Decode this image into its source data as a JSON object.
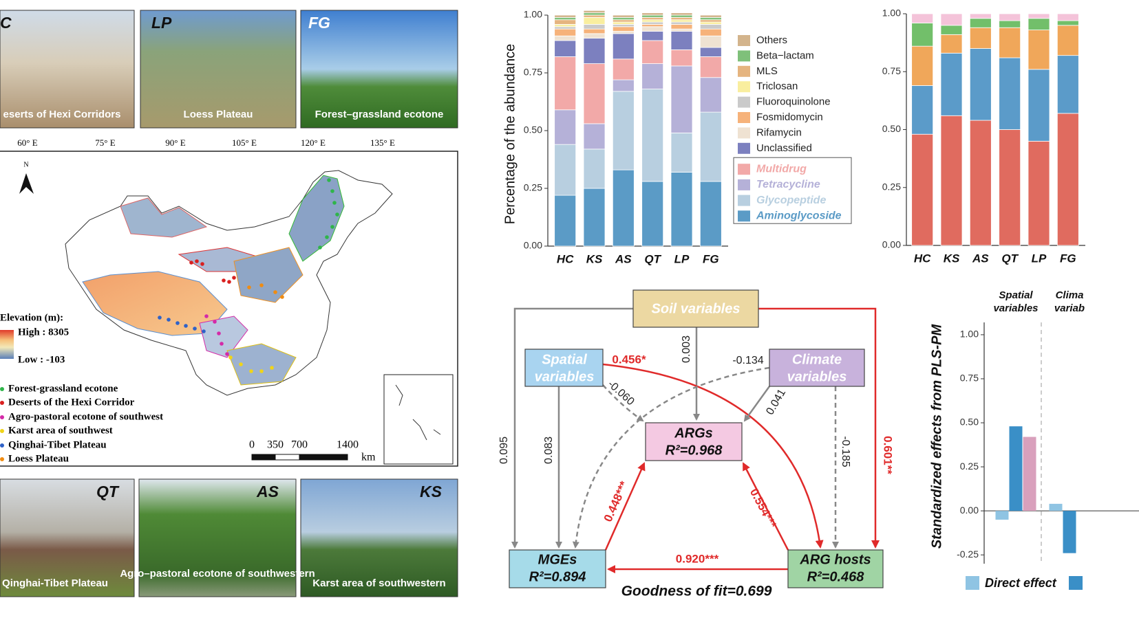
{
  "photos": {
    "top": [
      {
        "code": "C",
        "caption": "eserts of Hexi Corridors"
      },
      {
        "code": "LP",
        "caption": "Loess Plateau"
      },
      {
        "code": "FG",
        "caption": "Forest–grassland ecotone"
      }
    ],
    "bottom": [
      {
        "code": "QT",
        "caption": "Qinghai-Tibet Plateau"
      },
      {
        "code": "AS",
        "caption": "Agro–pastoral ecotone of southwestern"
      },
      {
        "code": "KS",
        "caption": "Karst area of southwestern"
      }
    ]
  },
  "map": {
    "longitudes": [
      "60° E",
      "75° E",
      "90° E",
      "105° E",
      "120° E",
      "135° E"
    ],
    "north": "N",
    "elevation_title": "Elevation (m):",
    "elevation_high": "High : 8305",
    "elevation_low": "Low : -103",
    "legend": [
      {
        "label": "Forest-grassland ecotone",
        "color": "#2fb54a"
      },
      {
        "label": "Deserts of the Hexi Corridor",
        "color": "#d9201f"
      },
      {
        "label": "Agro-pastoral ecotone of southwest",
        "color": "#d42aa8"
      },
      {
        "label": "Karst area of southwest",
        "color": "#f0d419"
      },
      {
        "label": "Qinghai-Tibet Plateau",
        "color": "#2f62c8"
      },
      {
        "label": "Loess Plateau",
        "color": "#f08c12"
      }
    ],
    "scale_labels": [
      "0",
      "350",
      "700",
      "1400"
    ],
    "scale_unit": "km"
  },
  "chart_data": [
    {
      "type": "bar",
      "stacked": true,
      "y_label": "Percentage of the abundance",
      "categories": [
        "HC",
        "KS",
        "AS",
        "QT",
        "LP",
        "FG"
      ],
      "ylim": [
        0,
        1
      ],
      "yticks": [
        {
          "value": 0,
          "label": "0.00"
        },
        {
          "value": 0.25,
          "label": "0.25"
        },
        {
          "value": 0.5,
          "label": "0.50"
        },
        {
          "value": 0.75,
          "label": "0.75"
        },
        {
          "value": 1,
          "label": "1.00"
        }
      ],
      "series": [
        {
          "name": "Aminoglycoside",
          "color": "#5b9bc6",
          "emphasis": true,
          "values": [
            0.22,
            0.25,
            0.33,
            0.28,
            0.32,
            0.28
          ]
        },
        {
          "name": "Glycopeptide",
          "color": "#b8cfe0",
          "emphasis": true,
          "values": [
            0.22,
            0.17,
            0.34,
            0.4,
            0.17,
            0.3
          ]
        },
        {
          "name": "Tetracycline",
          "color": "#b5b1d8",
          "emphasis": true,
          "values": [
            0.15,
            0.11,
            0.05,
            0.11,
            0.29,
            0.15
          ]
        },
        {
          "name": "Multidrug",
          "color": "#f2a9a8",
          "emphasis": true,
          "values": [
            0.23,
            0.26,
            0.09,
            0.1,
            0.07,
            0.09
          ]
        },
        {
          "name": "Unclassified",
          "color": "#7c80bf",
          "values": [
            0.07,
            0.11,
            0.11,
            0.04,
            0.08,
            0.04
          ]
        },
        {
          "name": "Rifamycin",
          "color": "#efe2d2",
          "values": [
            0.02,
            0.02,
            0.01,
            0.02,
            0.01,
            0.05
          ]
        },
        {
          "name": "Fosmidomycin",
          "color": "#f6b27a",
          "values": [
            0.03,
            0.02,
            0.02,
            0.01,
            0.02,
            0.03
          ]
        },
        {
          "name": "Fluoroquinolone",
          "color": "#cacaca",
          "values": [
            0.01,
            0.02,
            0.01,
            0.01,
            0.01,
            0.02
          ]
        },
        {
          "name": "Triclosan",
          "color": "#f9ee9f",
          "values": [
            0.01,
            0.03,
            0.01,
            0.01,
            0.01,
            0.01
          ]
        },
        {
          "name": "MLS",
          "color": "#e5b47f",
          "values": [
            0.02,
            0.01,
            0.01,
            0.01,
            0.01,
            0.01
          ]
        },
        {
          "name": "Beta−lactam",
          "color": "#7fc07a",
          "values": [
            0.01,
            0.01,
            0.01,
            0.01,
            0.01,
            0.01
          ]
        },
        {
          "name": "Others",
          "color": "#d3b48c",
          "values": [
            0.01,
            0.01,
            0.01,
            0.01,
            0.01,
            0.01
          ]
        }
      ]
    },
    {
      "type": "bar",
      "stacked": true,
      "categories": [
        "HC",
        "KS",
        "AS",
        "QT",
        "LP",
        "FG"
      ],
      "ylim": [
        0,
        1
      ],
      "yticks": [
        {
          "value": 0,
          "label": "0.00"
        },
        {
          "value": 0.25,
          "label": "0.25"
        },
        {
          "value": 0.5,
          "label": "0.50"
        },
        {
          "value": 0.75,
          "label": "0.75"
        },
        {
          "value": 1,
          "label": "1.00"
        }
      ],
      "series": [
        {
          "color": "#e06b5f",
          "values": [
            0.48,
            0.56,
            0.54,
            0.5,
            0.45,
            0.57
          ]
        },
        {
          "color": "#5b9bc9",
          "values": [
            0.21,
            0.27,
            0.31,
            0.31,
            0.31,
            0.25
          ]
        },
        {
          "color": "#f0a75a",
          "values": [
            0.17,
            0.08,
            0.09,
            0.13,
            0.17,
            0.13
          ]
        },
        {
          "color": "#72bf6a",
          "values": [
            0.1,
            0.04,
            0.04,
            0.03,
            0.05,
            0.02
          ]
        },
        {
          "color": "#f4c3d9",
          "values": [
            0.04,
            0.05,
            0.02,
            0.03,
            0.02,
            0.03
          ]
        }
      ]
    },
    {
      "type": "bar",
      "stacked": false,
      "y_label": "Standardized effects from PLS-PM",
      "categories": [
        [
          "Spatial",
          "variables"
        ],
        [
          "Clima",
          "variab"
        ]
      ],
      "ylim": [
        -0.3,
        1.07
      ],
      "yticks": [
        {
          "value": -0.25,
          "label": "-0.25"
        },
        {
          "value": 0,
          "label": "0.00"
        },
        {
          "value": 0.25,
          "label": "0.25"
        },
        {
          "value": 0.5,
          "label": "0.50"
        },
        {
          "value": 0.75,
          "label": "0.75"
        },
        {
          "value": 1,
          "label": "1.00"
        }
      ],
      "series": [
        {
          "name": "Direct effect",
          "color": "#8fc4e3",
          "values": [
            -0.05,
            0.04
          ]
        },
        {
          "color": "#3a8fc7",
          "values": [
            0.48,
            -0.24
          ]
        },
        {
          "color": "#d9a0bc",
          "values": [
            0.42,
            null
          ]
        }
      ]
    }
  ],
  "diagram": {
    "nodes": [
      {
        "lines": [
          "Soil variables"
        ]
      },
      {
        "lines": [
          "Spatial",
          "variables"
        ]
      },
      {
        "lines": [
          "Climate",
          "variables"
        ]
      },
      {
        "lines": [
          "ARGs",
          "R²=0.968"
        ]
      },
      {
        "lines": [
          "MGEs",
          "R²=0.894"
        ]
      },
      {
        "lines": [
          "ARG hosts",
          "R²=0.468"
        ]
      }
    ],
    "edges": [
      {
        "label": "0.095"
      },
      {
        "label": "0.601**"
      },
      {
        "label": "0.003"
      },
      {
        "label": "0.083"
      },
      {
        "label": "-0.060"
      },
      {
        "label": "0.456*"
      },
      {
        "label": "-0.134"
      },
      {
        "label": "0.041"
      },
      {
        "label": "-0.185"
      },
      {
        "label": "0.448***"
      },
      {
        "label": "0.554***"
      },
      {
        "label": "0.920***"
      }
    ],
    "goodness_of_fit": "Goodness of fit=0.699"
  }
}
